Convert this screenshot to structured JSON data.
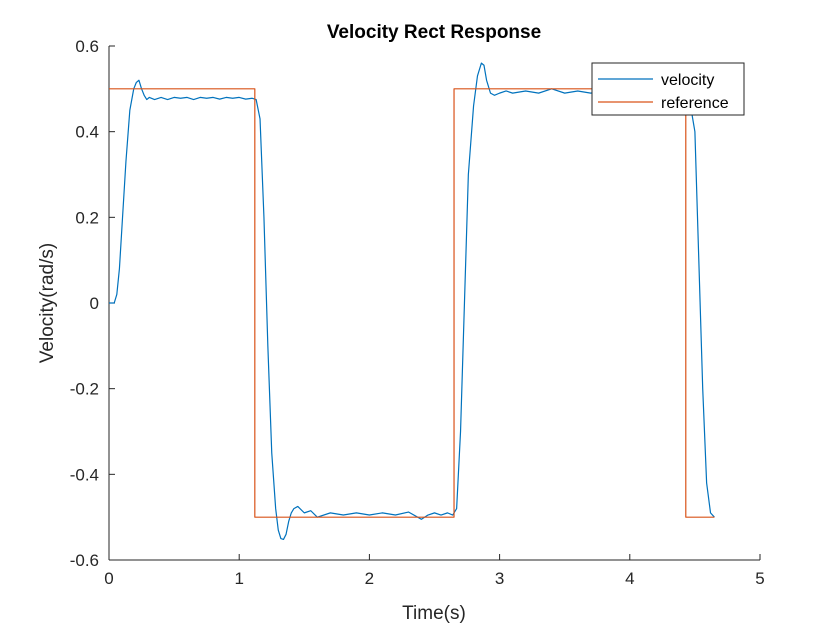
{
  "chart_data": {
    "type": "line",
    "title": "Velocity Rect Response",
    "xlabel": "Time(s)",
    "ylabel": "Velocity(rad/s)",
    "xlim": [
      0,
      5
    ],
    "ylim": [
      -0.6,
      0.6
    ],
    "xticks": [
      0,
      1,
      2,
      3,
      4,
      5
    ],
    "yticks": [
      -0.6,
      -0.4,
      -0.2,
      0,
      0.2,
      0.4,
      0.6
    ],
    "xtick_labels": [
      "0",
      "1",
      "2",
      "3",
      "4",
      "5"
    ],
    "ytick_labels": [
      "-0.6",
      "-0.4",
      "-0.2",
      "0",
      "0.2",
      "0.4",
      "0.6"
    ],
    "grid": false,
    "legend_position": "top-right",
    "series": [
      {
        "name": "velocity",
        "color": "#0072BD",
        "x": [
          0,
          0.04,
          0.06,
          0.08,
          0.1,
          0.13,
          0.16,
          0.19,
          0.21,
          0.23,
          0.25,
          0.27,
          0.29,
          0.31,
          0.35,
          0.4,
          0.45,
          0.5,
          0.55,
          0.6,
          0.65,
          0.7,
          0.75,
          0.8,
          0.85,
          0.9,
          0.95,
          1.0,
          1.05,
          1.1,
          1.13,
          1.16,
          1.19,
          1.22,
          1.25,
          1.28,
          1.3,
          1.32,
          1.34,
          1.36,
          1.38,
          1.4,
          1.42,
          1.45,
          1.5,
          1.55,
          1.6,
          1.7,
          1.8,
          1.9,
          2.0,
          2.1,
          2.2,
          2.3,
          2.4,
          2.45,
          2.5,
          2.55,
          2.6,
          2.64,
          2.67,
          2.7,
          2.73,
          2.76,
          2.8,
          2.83,
          2.86,
          2.88,
          2.9,
          2.93,
          2.96,
          3.0,
          3.05,
          3.1,
          3.2,
          3.3,
          3.4,
          3.5,
          3.6,
          3.7,
          3.8,
          3.9,
          4.0,
          4.1,
          4.2,
          4.3,
          4.4,
          4.45,
          4.5,
          4.53,
          4.56,
          4.59,
          4.62,
          4.65
        ],
        "y": [
          0,
          0,
          0.02,
          0.08,
          0.18,
          0.33,
          0.45,
          0.5,
          0.515,
          0.52,
          0.5,
          0.485,
          0.475,
          0.48,
          0.475,
          0.48,
          0.475,
          0.48,
          0.478,
          0.48,
          0.475,
          0.48,
          0.478,
          0.48,
          0.476,
          0.48,
          0.478,
          0.48,
          0.476,
          0.478,
          0.475,
          0.43,
          0.2,
          -0.1,
          -0.35,
          -0.48,
          -0.53,
          -0.55,
          -0.552,
          -0.54,
          -0.51,
          -0.49,
          -0.48,
          -0.475,
          -0.49,
          -0.485,
          -0.5,
          -0.49,
          -0.495,
          -0.49,
          -0.495,
          -0.49,
          -0.495,
          -0.488,
          -0.505,
          -0.495,
          -0.49,
          -0.495,
          -0.49,
          -0.495,
          -0.48,
          -0.3,
          0.0,
          0.3,
          0.46,
          0.53,
          0.56,
          0.555,
          0.52,
          0.49,
          0.485,
          0.49,
          0.495,
          0.49,
          0.495,
          0.49,
          0.5,
          0.49,
          0.495,
          0.49,
          0.495,
          0.49,
          0.495,
          0.49,
          0.495,
          0.49,
          0.495,
          0.49,
          0.4,
          0.1,
          -0.2,
          -0.42,
          -0.49,
          -0.5
        ]
      },
      {
        "name": "reference",
        "color": "#D95319",
        "x": [
          0,
          1.12,
          1.12,
          2.65,
          2.65,
          4.43,
          4.43,
          4.65
        ],
        "y": [
          0.5,
          0.5,
          -0.5,
          -0.5,
          0.5,
          0.5,
          -0.5,
          -0.5
        ]
      }
    ]
  }
}
